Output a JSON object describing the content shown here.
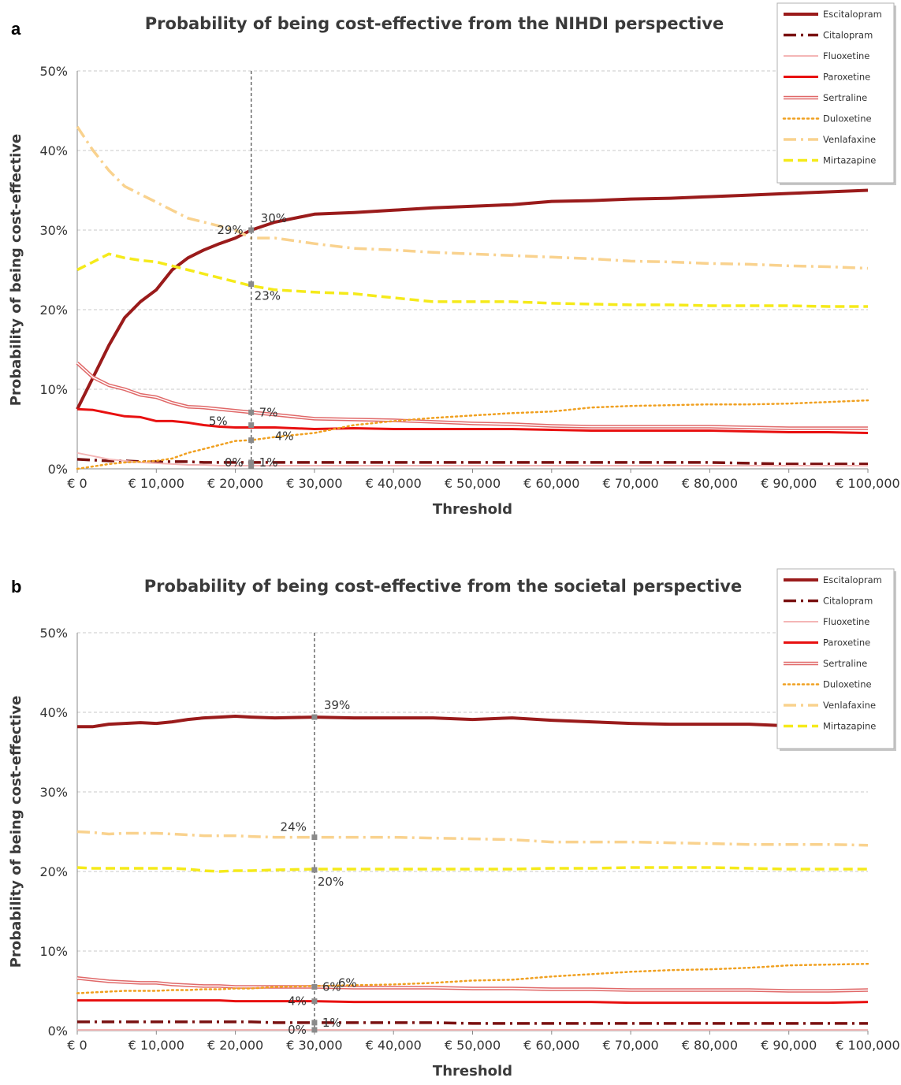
{
  "chart_data": [
    {
      "type": "line",
      "panel_label": "a",
      "title": "Probability of being cost-effective from the NIHDI perspective",
      "xlabel": "Threshold",
      "ylabel": "Probability of being cost-effective",
      "xlim": [
        0,
        100000
      ],
      "ylim": [
        0,
        0.5
      ],
      "x_ticks": [
        "€ 0",
        "€ 10,000",
        "€ 20,000",
        "€ 30,000",
        "€ 40,000",
        "€ 50,000",
        "€ 60,000",
        "€ 70,000",
        "€ 80,000",
        "€ 90,000",
        "€ 100,000"
      ],
      "y_ticks": [
        "0%",
        "10%",
        "20%",
        "30%",
        "40%",
        "50%"
      ],
      "grid": "horizontal dashed",
      "legend_position": "top-right",
      "x": [
        0,
        2000,
        4000,
        6000,
        8000,
        10000,
        12000,
        14000,
        16000,
        18000,
        20000,
        22000,
        25000,
        30000,
        35000,
        40000,
        45000,
        50000,
        55000,
        60000,
        65000,
        70000,
        75000,
        80000,
        85000,
        90000,
        95000,
        100000
      ],
      "series": [
        {
          "name": "Escitalopram",
          "color": "#9a1b1b",
          "style": "thick-solid",
          "values": [
            0.075,
            0.115,
            0.155,
            0.19,
            0.21,
            0.225,
            0.25,
            0.265,
            0.275,
            0.283,
            0.29,
            0.3,
            0.31,
            0.32,
            0.322,
            0.325,
            0.328,
            0.33,
            0.332,
            0.336,
            0.337,
            0.339,
            0.34,
            0.342,
            0.344,
            0.346,
            0.348,
            0.35
          ]
        },
        {
          "name": "Citalopram",
          "color": "#7a1010",
          "style": "dash-dot",
          "values": [
            0.012,
            0.011,
            0.01,
            0.01,
            0.009,
            0.009,
            0.009,
            0.009,
            0.008,
            0.008,
            0.008,
            0.008,
            0.008,
            0.008,
            0.008,
            0.008,
            0.008,
            0.008,
            0.008,
            0.008,
            0.008,
            0.008,
            0.008,
            0.008,
            0.007,
            0.006,
            0.006,
            0.006
          ]
        },
        {
          "name": "Fluoxetine",
          "color": "#f4b6b6",
          "style": "thin-solid",
          "values": [
            0.02,
            0.016,
            0.012,
            0.01,
            0.008,
            0.007,
            0.006,
            0.005,
            0.005,
            0.004,
            0.004,
            0.004,
            0.004,
            0.004,
            0.004,
            0.004,
            0.004,
            0.004,
            0.004,
            0.004,
            0.004,
            0.004,
            0.004,
            0.004,
            0.004,
            0.004,
            0.004,
            0.004
          ]
        },
        {
          "name": "Paroxetine",
          "color": "#e81010",
          "style": "solid",
          "values": [
            0.075,
            0.074,
            0.07,
            0.066,
            0.065,
            0.06,
            0.06,
            0.058,
            0.055,
            0.053,
            0.052,
            0.052,
            0.052,
            0.05,
            0.051,
            0.05,
            0.05,
            0.05,
            0.05,
            0.049,
            0.048,
            0.048,
            0.048,
            0.048,
            0.047,
            0.046,
            0.046,
            0.045
          ]
        },
        {
          "name": "Sertraline",
          "color": "#e06868",
          "style": "double-line",
          "values": [
            0.133,
            0.115,
            0.105,
            0.1,
            0.093,
            0.09,
            0.083,
            0.078,
            0.077,
            0.075,
            0.073,
            0.071,
            0.068,
            0.063,
            0.062,
            0.061,
            0.059,
            0.057,
            0.056,
            0.054,
            0.053,
            0.053,
            0.053,
            0.053,
            0.052,
            0.051,
            0.051,
            0.051
          ]
        },
        {
          "name": "Duloxetine",
          "color": "#f0a020",
          "style": "dotted",
          "values": [
            0.0,
            0.003,
            0.006,
            0.008,
            0.009,
            0.01,
            0.013,
            0.02,
            0.025,
            0.03,
            0.035,
            0.036,
            0.04,
            0.045,
            0.055,
            0.06,
            0.064,
            0.067,
            0.07,
            0.072,
            0.077,
            0.079,
            0.08,
            0.081,
            0.081,
            0.082,
            0.084,
            0.086
          ]
        },
        {
          "name": "Venlafaxine",
          "color": "#f9d28e",
          "style": "dash-dot",
          "values": [
            0.43,
            0.4,
            0.375,
            0.355,
            0.345,
            0.335,
            0.325,
            0.315,
            0.31,
            0.305,
            0.3,
            0.29,
            0.29,
            0.283,
            0.277,
            0.275,
            0.272,
            0.27,
            0.268,
            0.266,
            0.264,
            0.261,
            0.26,
            0.258,
            0.257,
            0.255,
            0.254,
            0.252
          ]
        },
        {
          "name": "Mirtazapine",
          "color": "#f5ea1a",
          "style": "dashed",
          "values": [
            0.25,
            0.26,
            0.27,
            0.265,
            0.262,
            0.26,
            0.255,
            0.25,
            0.245,
            0.24,
            0.235,
            0.23,
            0.225,
            0.222,
            0.22,
            0.215,
            0.21,
            0.21,
            0.21,
            0.208,
            0.207,
            0.206,
            0.206,
            0.205,
            0.205,
            0.205,
            0.204,
            0.204
          ]
        }
      ],
      "vline_x": 22000,
      "vline_points": [
        0.3,
        0.232,
        0.071,
        0.055,
        0.036,
        0.008,
        0.003
      ],
      "annotations": [
        {
          "text": "30%",
          "x": 22000,
          "y": 0.3,
          "pos": "right-up"
        },
        {
          "text": "29%",
          "x": 22000,
          "y": 0.3,
          "pos": "left"
        },
        {
          "text": "23%",
          "x": 22000,
          "y": 0.232,
          "pos": "right-down"
        },
        {
          "text": "7%",
          "x": 22000,
          "y": 0.071,
          "pos": "right"
        },
        {
          "text": "5%",
          "x": 22000,
          "y": 0.055,
          "pos": "left-far"
        },
        {
          "text": "4%",
          "x": 22000,
          "y": 0.036,
          "pos": "right-up-far"
        },
        {
          "text": "0%",
          "x": 22000,
          "y": 0.008,
          "pos": "left"
        },
        {
          "text": "1%",
          "x": 22000,
          "y": 0.008,
          "pos": "right"
        }
      ]
    },
    {
      "type": "line",
      "panel_label": "b",
      "title": "Probability of being cost-effective from the societal perspective",
      "xlabel": "Threshold",
      "ylabel": "Probability of being cost-effective",
      "xlim": [
        0,
        100000
      ],
      "ylim": [
        0,
        0.5
      ],
      "x_ticks": [
        "€ 0",
        "€ 10,000",
        "€ 20,000",
        "€ 30,000",
        "€ 40,000",
        "€ 50,000",
        "€ 60,000",
        "€ 70,000",
        "€ 80,000",
        "€ 90,000",
        "€ 100,000"
      ],
      "y_ticks": [
        "0%",
        "10%",
        "20%",
        "30%",
        "40%",
        "50%"
      ],
      "grid": "horizontal dashed",
      "legend_position": "top-right",
      "x": [
        0,
        2000,
        4000,
        6000,
        8000,
        10000,
        12000,
        14000,
        16000,
        18000,
        20000,
        22000,
        25000,
        30000,
        35000,
        40000,
        45000,
        50000,
        55000,
        60000,
        65000,
        70000,
        75000,
        80000,
        85000,
        90000,
        95000,
        100000
      ],
      "series": [
        {
          "name": "Escitalopram",
          "color": "#9a1b1b",
          "style": "thick-solid",
          "values": [
            0.382,
            0.382,
            0.385,
            0.386,
            0.387,
            0.386,
            0.388,
            0.391,
            0.393,
            0.394,
            0.395,
            0.394,
            0.393,
            0.394,
            0.393,
            0.393,
            0.393,
            0.391,
            0.393,
            0.39,
            0.388,
            0.386,
            0.385,
            0.385,
            0.385,
            0.383,
            0.382,
            0.382
          ]
        },
        {
          "name": "Citalopram",
          "color": "#7a1010",
          "style": "dash-dot",
          "values": [
            0.011,
            0.011,
            0.011,
            0.011,
            0.011,
            0.011,
            0.011,
            0.011,
            0.011,
            0.011,
            0.011,
            0.011,
            0.01,
            0.01,
            0.01,
            0.01,
            0.01,
            0.009,
            0.009,
            0.009,
            0.009,
            0.009,
            0.009,
            0.009,
            0.009,
            0.009,
            0.009,
            0.009
          ]
        },
        {
          "name": "Fluoxetine",
          "color": "#f4b6b6",
          "style": "thin-solid",
          "values": [
            0.001,
            0.001,
            0.001,
            0.001,
            0.001,
            0.001,
            0.001,
            0.001,
            0.001,
            0.001,
            0.001,
            0.001,
            0.001,
            0.001,
            0.001,
            0.001,
            0.001,
            0.001,
            0.001,
            0.001,
            0.001,
            0.001,
            0.001,
            0.001,
            0.001,
            0.001,
            0.001,
            0.001
          ]
        },
        {
          "name": "Paroxetine",
          "color": "#e81010",
          "style": "solid",
          "values": [
            0.038,
            0.038,
            0.038,
            0.038,
            0.038,
            0.038,
            0.038,
            0.038,
            0.038,
            0.038,
            0.037,
            0.037,
            0.037,
            0.037,
            0.036,
            0.036,
            0.036,
            0.036,
            0.036,
            0.036,
            0.036,
            0.035,
            0.035,
            0.035,
            0.035,
            0.035,
            0.035,
            0.036
          ]
        },
        {
          "name": "Sertraline",
          "color": "#e06868",
          "style": "double-line",
          "values": [
            0.066,
            0.064,
            0.062,
            0.061,
            0.06,
            0.06,
            0.058,
            0.057,
            0.056,
            0.056,
            0.055,
            0.055,
            0.055,
            0.055,
            0.054,
            0.054,
            0.054,
            0.053,
            0.053,
            0.052,
            0.052,
            0.051,
            0.051,
            0.051,
            0.051,
            0.05,
            0.05,
            0.051
          ]
        },
        {
          "name": "Duloxetine",
          "color": "#f0a020",
          "style": "dotted",
          "values": [
            0.047,
            0.048,
            0.049,
            0.05,
            0.05,
            0.05,
            0.051,
            0.051,
            0.052,
            0.052,
            0.053,
            0.053,
            0.055,
            0.056,
            0.057,
            0.058,
            0.06,
            0.063,
            0.064,
            0.068,
            0.071,
            0.074,
            0.076,
            0.077,
            0.079,
            0.082,
            0.083,
            0.084
          ]
        },
        {
          "name": "Venlafaxine",
          "color": "#f9d28e",
          "style": "dash-dot",
          "values": [
            0.25,
            0.249,
            0.247,
            0.248,
            0.248,
            0.248,
            0.247,
            0.246,
            0.245,
            0.245,
            0.245,
            0.244,
            0.243,
            0.243,
            0.243,
            0.243,
            0.242,
            0.241,
            0.24,
            0.237,
            0.237,
            0.237,
            0.236,
            0.235,
            0.234,
            0.234,
            0.234,
            0.233
          ]
        },
        {
          "name": "Mirtazapine",
          "color": "#f5ea1a",
          "style": "dashed",
          "values": [
            0.205,
            0.204,
            0.204,
            0.204,
            0.204,
            0.204,
            0.204,
            0.203,
            0.201,
            0.2,
            0.201,
            0.201,
            0.202,
            0.203,
            0.203,
            0.203,
            0.203,
            0.203,
            0.203,
            0.204,
            0.204,
            0.205,
            0.205,
            0.205,
            0.204,
            0.203,
            0.203,
            0.203
          ]
        }
      ],
      "vline_x": 30000,
      "vline_points": [
        0.394,
        0.243,
        0.202,
        0.055,
        0.037,
        0.01,
        0.001
      ],
      "annotations": [
        {
          "text": "39%",
          "x": 30000,
          "y": 0.394,
          "pos": "right-up"
        },
        {
          "text": "24%",
          "x": 30000,
          "y": 0.243,
          "pos": "left-up"
        },
        {
          "text": "20%",
          "x": 30000,
          "y": 0.202,
          "pos": "right-down"
        },
        {
          "text": "6%",
          "x": 30000,
          "y": 0.055,
          "pos": "right"
        },
        {
          "text": "6%",
          "x": 30000,
          "y": 0.055,
          "pos": "right-up-far"
        },
        {
          "text": "4%",
          "x": 30000,
          "y": 0.037,
          "pos": "left"
        },
        {
          "text": "0%",
          "x": 30000,
          "y": 0.001,
          "pos": "left"
        },
        {
          "text": "1%",
          "x": 30000,
          "y": 0.01,
          "pos": "right"
        }
      ]
    }
  ]
}
